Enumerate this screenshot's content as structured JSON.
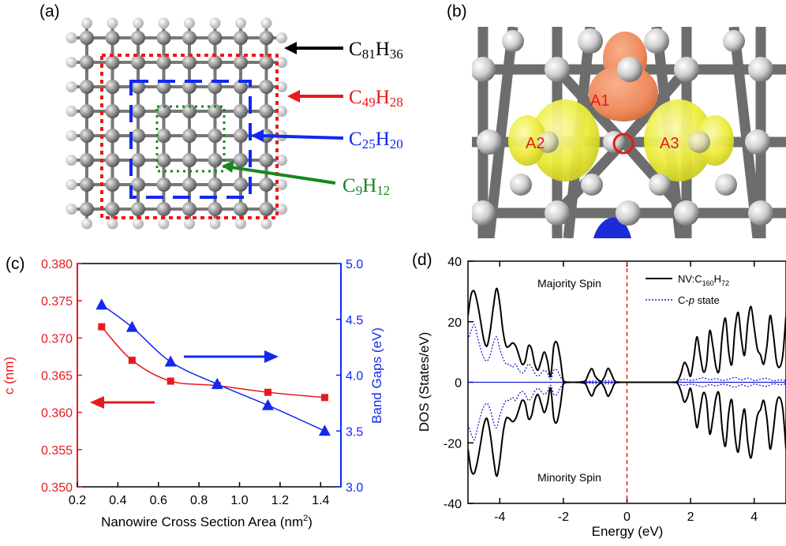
{
  "figure": {
    "panel_labels": [
      "(a)",
      "(b)",
      "(c)",
      "(d)"
    ],
    "colors": {
      "red": "#e8191e",
      "blue": "#1228f0",
      "green": "#17871e",
      "black": "#000000",
      "orange": "#ee8a5c",
      "yellow": "#ecec3a",
      "dark_blue_curve": "#1b1bd6"
    }
  },
  "panel_a": {
    "structures": [
      {
        "base": "C",
        "c_sub": "81",
        "h": "H",
        "h_sub": "36",
        "color": "#000000",
        "box_style": "none"
      },
      {
        "base": "C",
        "c_sub": "49",
        "h": "H",
        "h_sub": "28",
        "color": "#e8191e",
        "box_style": "dotted"
      },
      {
        "base": "C",
        "c_sub": "25",
        "h": "H",
        "h_sub": "20",
        "color": "#1228f0",
        "box_style": "dashed"
      },
      {
        "base": "C",
        "c_sub": "9",
        "h": "H",
        "h_sub": "12",
        "color": "#17871e",
        "box_style": "dotted"
      }
    ]
  },
  "panel_b": {
    "orbital_labels": [
      "A1",
      "A2",
      "A3"
    ],
    "label_color": "#e8191e"
  },
  "chart_data": [
    {
      "id": "c",
      "type": "line",
      "xlabel": "Nanowire Cross Section Area (nm",
      "xlabel_sup": "2",
      "xlabel_end": ")",
      "xlim": [
        0.2,
        1.5
      ],
      "xticks": [
        "0.2",
        "0.4",
        "0.6",
        "0.8",
        "1.0",
        "1.2",
        "1.4"
      ],
      "grid": false,
      "series": [
        {
          "axis": "left",
          "label": "c (nm)",
          "color": "#e8191e",
          "marker": "square",
          "ylim": [
            0.35,
            0.38
          ],
          "yticks": [
            "0.350",
            "0.355",
            "0.360",
            "0.365",
            "0.370",
            "0.375",
            "0.380"
          ],
          "x": [
            0.32,
            0.47,
            0.66,
            0.89,
            1.14,
            1.42
          ],
          "y": [
            0.3715,
            0.367,
            0.3642,
            0.3636,
            0.3627,
            0.362
          ]
        },
        {
          "axis": "right",
          "label": "Band Gaps (eV)",
          "color": "#1228f0",
          "marker": "triangle",
          "ylim": [
            3.0,
            5.0
          ],
          "yticks": [
            "3.0",
            "3.5",
            "4.0",
            "4.5",
            "5.0"
          ],
          "x": [
            0.32,
            0.47,
            0.66,
            0.89,
            1.14,
            1.42
          ],
          "y": [
            4.63,
            4.43,
            4.12,
            3.92,
            3.73,
            3.5
          ]
        }
      ]
    },
    {
      "id": "d",
      "type": "line",
      "xlabel": "Energy (eV)",
      "ylabel": "DOS (States/eV)",
      "xlim": [
        -5,
        5
      ],
      "ylim": [
        -40,
        40
      ],
      "xticks": [
        "-4",
        "-2",
        "0",
        "2",
        "4"
      ],
      "yticks": [
        "40",
        "20",
        "0",
        "-20",
        "-40"
      ],
      "annotations": {
        "top": "Majority Spin",
        "bottom": "Minority Spin"
      },
      "fermi_line_x": 0,
      "legend": {
        "position": "top-right",
        "entries": [
          {
            "label_pre": "NV:C",
            "sub1": "160",
            "mid": "H",
            "sub2": "72",
            "style": "solid",
            "color": "#000000"
          },
          {
            "label_pre": "C-",
            "italic": "p",
            "label_post": " state",
            "style": "dotted",
            "color": "#1b1bd6"
          }
        ]
      },
      "series": [
        {
          "name": "NV:C160H72",
          "color": "#000000",
          "x": [
            -5.0,
            -4.9,
            -4.8,
            -4.7,
            -4.6,
            -4.5,
            -4.4,
            -4.3,
            -4.2,
            -4.1,
            -4.0,
            -3.9,
            -3.8,
            -3.7,
            -3.6,
            -3.5,
            -3.4,
            -3.3,
            -3.2,
            -3.1,
            -3.0,
            -2.9,
            -2.8,
            -2.7,
            -2.6,
            -2.5,
            -2.4,
            -2.3,
            -2.2,
            -2.1,
            -2.0,
            -1.9,
            -1.8,
            -1.7,
            -1.6,
            -1.5,
            -1.4,
            -1.3,
            -1.2,
            -1.1,
            -1.0,
            -0.9,
            -0.8,
            -0.7,
            -0.6,
            -0.5,
            -0.4,
            -0.3,
            -0.2,
            -0.1,
            0.0,
            0.2,
            0.4,
            0.6,
            0.8,
            1.0,
            1.2,
            1.4,
            1.5,
            1.6,
            1.7,
            1.8,
            1.9,
            2.0,
            2.1,
            2.2,
            2.3,
            2.4,
            2.5,
            2.6,
            2.7,
            2.8,
            2.9,
            3.0,
            3.1,
            3.2,
            3.3,
            3.4,
            3.5,
            3.6,
            3.7,
            3.8,
            3.9,
            4.0,
            4.1,
            4.2,
            4.3,
            4.4,
            4.5,
            4.6,
            4.7,
            4.8,
            4.9,
            5.0
          ],
          "y": [
            22,
            29,
            30,
            26,
            20,
            14,
            12,
            17,
            25,
            31,
            26,
            17,
            12,
            12,
            13,
            12,
            9,
            6,
            7,
            12,
            11,
            6,
            4,
            7,
            10,
            7,
            2,
            12,
            13,
            8,
            0.5,
            0,
            0,
            0,
            0,
            0,
            0.2,
            0.6,
            3,
            4.5,
            2,
            0.8,
            0.3,
            2,
            4.6,
            3,
            0.6,
            0,
            0,
            0,
            0,
            0,
            0,
            0,
            0,
            0,
            0,
            0,
            0,
            0.5,
            3,
            6.5,
            5,
            2,
            8,
            15,
            9,
            3.5,
            6,
            17,
            12,
            5,
            4,
            16,
            21,
            10,
            6,
            18,
            23,
            14,
            9,
            20,
            25,
            18,
            11,
            9,
            6,
            12,
            22,
            16,
            7,
            5,
            9,
            22
          ]
        },
        {
          "name": "C-p state",
          "color": "#1b1bd6",
          "x": [
            -5.0,
            -4.9,
            -4.8,
            -4.7,
            -4.6,
            -4.5,
            -4.4,
            -4.3,
            -4.2,
            -4.1,
            -4.0,
            -3.9,
            -3.8,
            -3.7,
            -3.6,
            -3.5,
            -3.4,
            -3.3,
            -3.2,
            -3.1,
            -3.0,
            -2.9,
            -2.8,
            -2.7,
            -2.6,
            -2.5,
            -2.4,
            -2.3,
            -2.2,
            -2.1,
            -2.0,
            -1.9,
            -1.0,
            -0.5,
            0.0,
            1.5,
            1.6,
            1.8,
            2.0,
            2.2,
            2.4,
            2.6,
            2.8,
            3.0,
            3.2,
            3.4,
            3.6,
            3.8,
            4.0,
            4.2,
            4.4,
            4.6,
            4.8,
            5.0
          ],
          "y": [
            14,
            17,
            19,
            15,
            11,
            8,
            7,
            9,
            13,
            15,
            11,
            8,
            6,
            6,
            5,
            6,
            4,
            3,
            4,
            6,
            5,
            3,
            2,
            3,
            4,
            3,
            1,
            4,
            4,
            2,
            0.3,
            0,
            0.4,
            0.4,
            0,
            0,
            0.5,
            1,
            0.6,
            1,
            1.5,
            0.8,
            1.2,
            0.6,
            1,
            1.6,
            0.8,
            1.4,
            0.6,
            1,
            1.3,
            0.5,
            0.8,
            0.5
          ]
        }
      ]
    }
  ]
}
